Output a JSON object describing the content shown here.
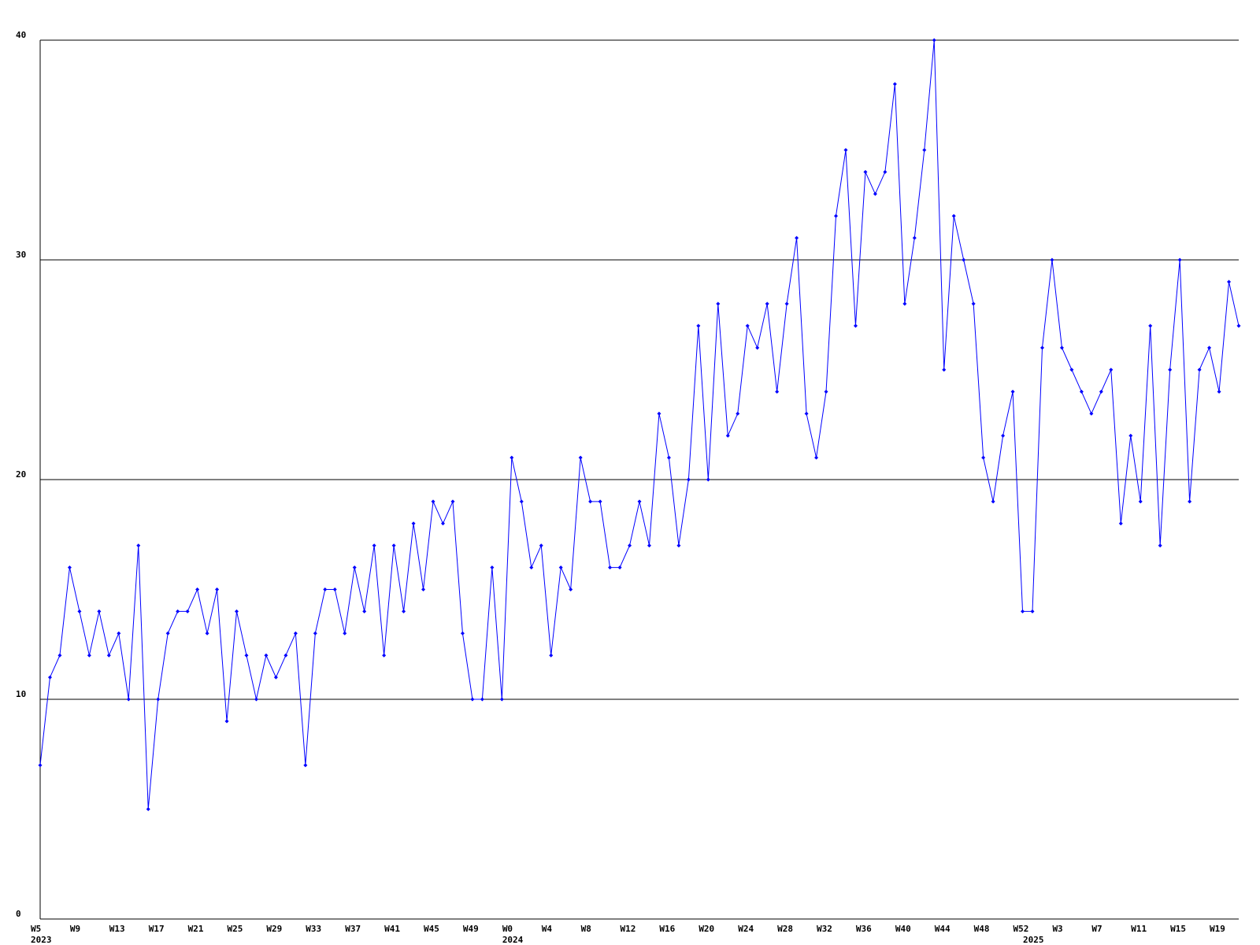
{
  "chart_data": {
    "type": "line",
    "categories": [
      "W5",
      null,
      null,
      null,
      "W9",
      null,
      null,
      null,
      "W13",
      null,
      null,
      null,
      "W17",
      null,
      null,
      null,
      "W21",
      null,
      null,
      null,
      "W25",
      null,
      null,
      null,
      "W29",
      null,
      null,
      null,
      "W33",
      null,
      null,
      null,
      "W37",
      null,
      null,
      null,
      "W41",
      null,
      null,
      null,
      "W45",
      null,
      null,
      null,
      "W49",
      null,
      null,
      null,
      "W0",
      null,
      null,
      null,
      "W4",
      null,
      null,
      null,
      "W8",
      null,
      null,
      null,
      "W12",
      null,
      null,
      null,
      "W16",
      null,
      null,
      null,
      "W20",
      null,
      null,
      null,
      "W24",
      null,
      null,
      null,
      "W28",
      null,
      null,
      null,
      "W32",
      null,
      null,
      null,
      "W36",
      null,
      null,
      null,
      "W40",
      null,
      null,
      null,
      "W44",
      null,
      null,
      null,
      "W48",
      null,
      null,
      null,
      "W52",
      null,
      null,
      null,
      "W3",
      null,
      null,
      null,
      "W7",
      null,
      null,
      null,
      "W11",
      null,
      null,
      null,
      "W15",
      null,
      null,
      null,
      "W19",
      null,
      null
    ],
    "years": [
      "2023",
      null,
      null,
      null,
      null,
      null,
      null,
      null,
      null,
      null,
      null,
      null,
      null,
      null,
      null,
      null,
      null,
      null,
      null,
      null,
      null,
      null,
      null,
      null,
      null,
      null,
      null,
      null,
      null,
      null,
      null,
      null,
      null,
      null,
      null,
      null,
      null,
      null,
      null,
      null,
      null,
      null,
      null,
      null,
      null,
      null,
      null,
      null,
      "2024",
      null,
      null,
      null,
      null,
      null,
      null,
      null,
      null,
      null,
      null,
      null,
      null,
      null,
      null,
      null,
      null,
      null,
      null,
      null,
      null,
      null,
      null,
      null,
      null,
      null,
      null,
      null,
      null,
      null,
      null,
      null,
      null,
      null,
      null,
      null,
      null,
      null,
      null,
      null,
      null,
      null,
      null,
      null,
      null,
      null,
      null,
      null,
      null,
      null,
      null,
      null,
      null,
      "2025",
      null,
      null,
      null,
      null,
      null,
      null,
      null,
      null,
      null,
      null,
      null,
      null,
      null,
      null,
      null,
      null,
      null,
      null,
      null,
      null,
      null
    ],
    "values": [
      7,
      11,
      12,
      16,
      14,
      12,
      14,
      12,
      13,
      10,
      17,
      5,
      10,
      13,
      14,
      14,
      15,
      13,
      15,
      9,
      14,
      12,
      10,
      12,
      11,
      12,
      13,
      7,
      13,
      15,
      15,
      13,
      16,
      14,
      17,
      12,
      17,
      14,
      18,
      15,
      19,
      18,
      19,
      13,
      10,
      10,
      16,
      10,
      21,
      19,
      16,
      17,
      12,
      16,
      15,
      21,
      19,
      19,
      16,
      16,
      17,
      19,
      17,
      23,
      21,
      17,
      20,
      27,
      20,
      28,
      22,
      23,
      27,
      26,
      28,
      24,
      28,
      31,
      23,
      21,
      24,
      32,
      35,
      27,
      34,
      33,
      34,
      38,
      28,
      31,
      35,
      40,
      25,
      32,
      30,
      28,
      21,
      19,
      22,
      24,
      14,
      14,
      26,
      30,
      26,
      25,
      24,
      23,
      24,
      25,
      18,
      22,
      19,
      27,
      17,
      25,
      30,
      19,
      25,
      26,
      24,
      29,
      27
    ],
    "color": "#0000ff",
    "ylim": [
      0,
      40
    ],
    "yticks": [
      0,
      10,
      20,
      30,
      40
    ],
    "grid": true
  }
}
